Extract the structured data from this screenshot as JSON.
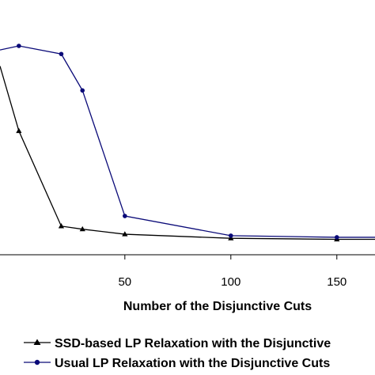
{
  "chart_data": {
    "type": "line",
    "xlabel": "Number of the Disjunctive Cuts",
    "ylabel": "",
    "title": "",
    "xlim": [
      -8.9,
      168
    ],
    "ylim": [
      0,
      1
    ],
    "x_ticks": [
      50,
      100,
      150
    ],
    "legend_position": "bottom",
    "series": [
      {
        "name": "SSD-based LP Relaxation with the Disjunctive",
        "color": "#000000",
        "marker": "triangle",
        "x": [
          -8.9,
          0,
          20,
          30,
          50,
          100,
          150,
          180
        ],
        "y": [
          0.9,
          0.58,
          0.11,
          0.095,
          0.07,
          0.05,
          0.045,
          0.045
        ]
      },
      {
        "name": "Usual LP Relaxation with the Disjunctive Cuts",
        "color": "#0a0a78",
        "marker": "circle",
        "x": [
          -8.9,
          0,
          20,
          30,
          50,
          100,
          150,
          180
        ],
        "y": [
          0.98,
          1.0,
          0.96,
          0.78,
          0.16,
          0.063,
          0.055,
          0.055
        ]
      }
    ]
  }
}
